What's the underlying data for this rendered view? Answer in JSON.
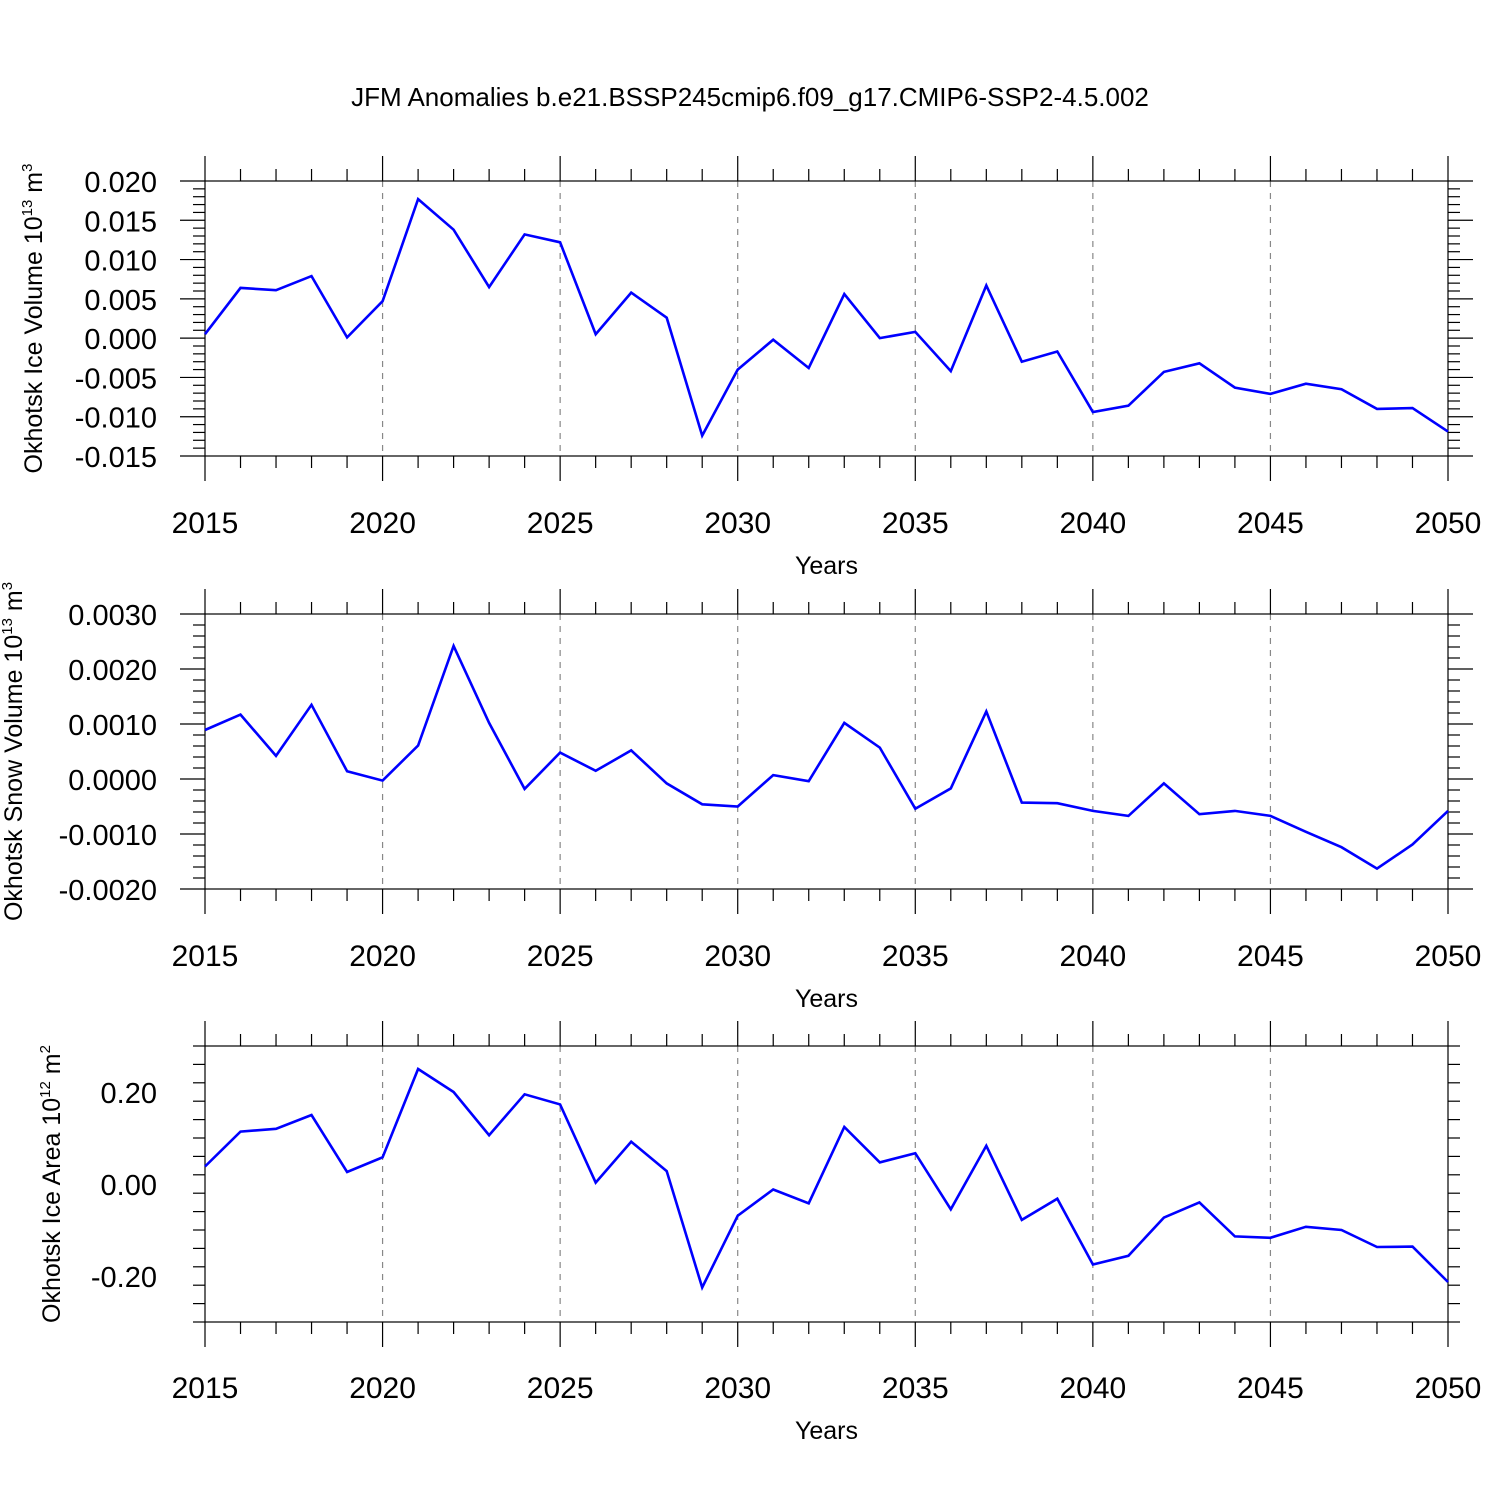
{
  "title": "JFM Anomalies b.e21.BSSP245cmip6.f09_g17.CMIP6-SSP2-4.5.002",
  "chart_data": [
    {
      "type": "line",
      "ylabel": "Okhotsk Ice Volume 10",
      "ylabel_exp": "13",
      "ylabel_unit": " m",
      "ylabel_unit_exp": "3",
      "xlabel": "Years",
      "xlim": [
        2015,
        2050
      ],
      "ylim": [
        -0.015,
        0.02
      ],
      "yticks": [
        "0.020",
        "0.015",
        "0.010",
        "0.005",
        "0.000",
        "-0.005",
        "-0.010",
        "-0.015"
      ],
      "ytick_values": [
        0.02,
        0.015,
        0.01,
        0.005,
        0.0,
        -0.005,
        -0.01,
        -0.015
      ],
      "xticks": [
        "2015",
        "2020",
        "2025",
        "2030",
        "2035",
        "2040",
        "2045",
        "2050"
      ],
      "grid": "dashed vertical at major x ticks",
      "color": "#0000ff",
      "series": [
        {
          "x": [
            2015,
            2016,
            2017,
            2018,
            2019,
            2020,
            2021,
            2022,
            2023,
            2024,
            2025,
            2026,
            2027,
            2028,
            2029,
            2030,
            2031,
            2032,
            2033,
            2034,
            2035,
            2036,
            2037,
            2038,
            2039,
            2040,
            2041,
            2042,
            2043,
            2044,
            2045,
            2046,
            2047,
            2048,
            2049,
            2050
          ],
          "values": [
            0.0005,
            0.0064,
            0.0061,
            0.0079,
            0.0001,
            0.0047,
            0.0177,
            0.0138,
            0.0065,
            0.0132,
            0.0122,
            0.0005,
            0.0058,
            0.0026,
            -0.0124,
            -0.004,
            -0.0002,
            -0.0038,
            0.0056,
            0.0,
            0.0008,
            -0.0042,
            0.0067,
            -0.003,
            -0.0017,
            -0.0094,
            -0.0086,
            -0.0043,
            -0.0032,
            -0.0063,
            -0.0071,
            -0.0058,
            -0.0065,
            -0.009,
            -0.0089,
            -0.0119
          ]
        }
      ]
    },
    {
      "type": "line",
      "ylabel": "Okhotsk Snow Volume 10",
      "ylabel_exp": "13",
      "ylabel_unit": " m",
      "ylabel_unit_exp": "3",
      "xlabel": "Years",
      "xlim": [
        2015,
        2050
      ],
      "ylim": [
        -0.002,
        0.003
      ],
      "yticks": [
        "0.0030",
        "0.0020",
        "0.0010",
        "0.0000",
        "-0.0010",
        "-0.0020"
      ],
      "ytick_values": [
        0.003,
        0.002,
        0.001,
        0.0,
        -0.001,
        -0.002
      ],
      "xticks": [
        "2015",
        "2020",
        "2025",
        "2030",
        "2035",
        "2040",
        "2045",
        "2050"
      ],
      "grid": "dashed vertical at major x ticks",
      "color": "#0000ff",
      "series": [
        {
          "x": [
            2015,
            2016,
            2017,
            2018,
            2019,
            2020,
            2021,
            2022,
            2023,
            2024,
            2025,
            2026,
            2027,
            2028,
            2029,
            2030,
            2031,
            2032,
            2033,
            2034,
            2035,
            2036,
            2037,
            2038,
            2039,
            2040,
            2041,
            2042,
            2043,
            2044,
            2045,
            2046,
            2047,
            2048,
            2049,
            2050
          ],
          "values": [
            0.00089,
            0.00117,
            0.00042,
            0.00135,
            0.00014,
            -3e-05,
            0.00061,
            0.00242,
            0.00102,
            -0.00018,
            0.00048,
            0.00015,
            0.00052,
            -8e-05,
            -0.00046,
            -0.0005,
            7e-05,
            -4e-05,
            0.00102,
            0.00057,
            -0.00054,
            -0.00017,
            0.00123,
            -0.00043,
            -0.00044,
            -0.00058,
            -0.00067,
            -8e-05,
            -0.00064,
            -0.00058,
            -0.00067,
            -0.00096,
            -0.00124,
            -0.00163,
            -0.00119,
            -0.00058
          ]
        }
      ]
    },
    {
      "type": "line",
      "ylabel": "Okhotsk Ice Area 10",
      "ylabel_exp": "12",
      "ylabel_unit": " m",
      "ylabel_unit_exp": "2",
      "xlabel": "Years",
      "xlim": [
        2015,
        2050
      ],
      "ylim": [
        -0.3,
        0.3
      ],
      "yticks": [
        "0.20",
        "0.00",
        "-0.20"
      ],
      "ytick_values": [
        0.2,
        0.0,
        -0.2
      ],
      "xticks": [
        "2015",
        "2020",
        "2025",
        "2030",
        "2035",
        "2040",
        "2045",
        "2050"
      ],
      "grid": "dashed vertical at major x ticks",
      "color": "#0000ff",
      "series": [
        {
          "x": [
            2015,
            2016,
            2017,
            2018,
            2019,
            2020,
            2021,
            2022,
            2023,
            2024,
            2025,
            2026,
            2027,
            2028,
            2029,
            2030,
            2031,
            2032,
            2033,
            2034,
            2035,
            2036,
            2037,
            2038,
            2039,
            2040,
            2041,
            2042,
            2043,
            2044,
            2045,
            2046,
            2047,
            2048,
            2049,
            2050
          ],
          "values": [
            0.038,
            0.114,
            0.12,
            0.15,
            0.026,
            0.058,
            0.25,
            0.2,
            0.106,
            0.195,
            0.173,
            0.003,
            0.092,
            0.028,
            -0.225,
            -0.069,
            -0.012,
            -0.042,
            0.124,
            0.047,
            0.067,
            -0.055,
            0.083,
            -0.078,
            -0.032,
            -0.175,
            -0.156,
            -0.073,
            -0.04,
            -0.114,
            -0.117,
            -0.093,
            -0.1,
            -0.137,
            -0.136,
            -0.213
          ]
        }
      ]
    }
  ]
}
